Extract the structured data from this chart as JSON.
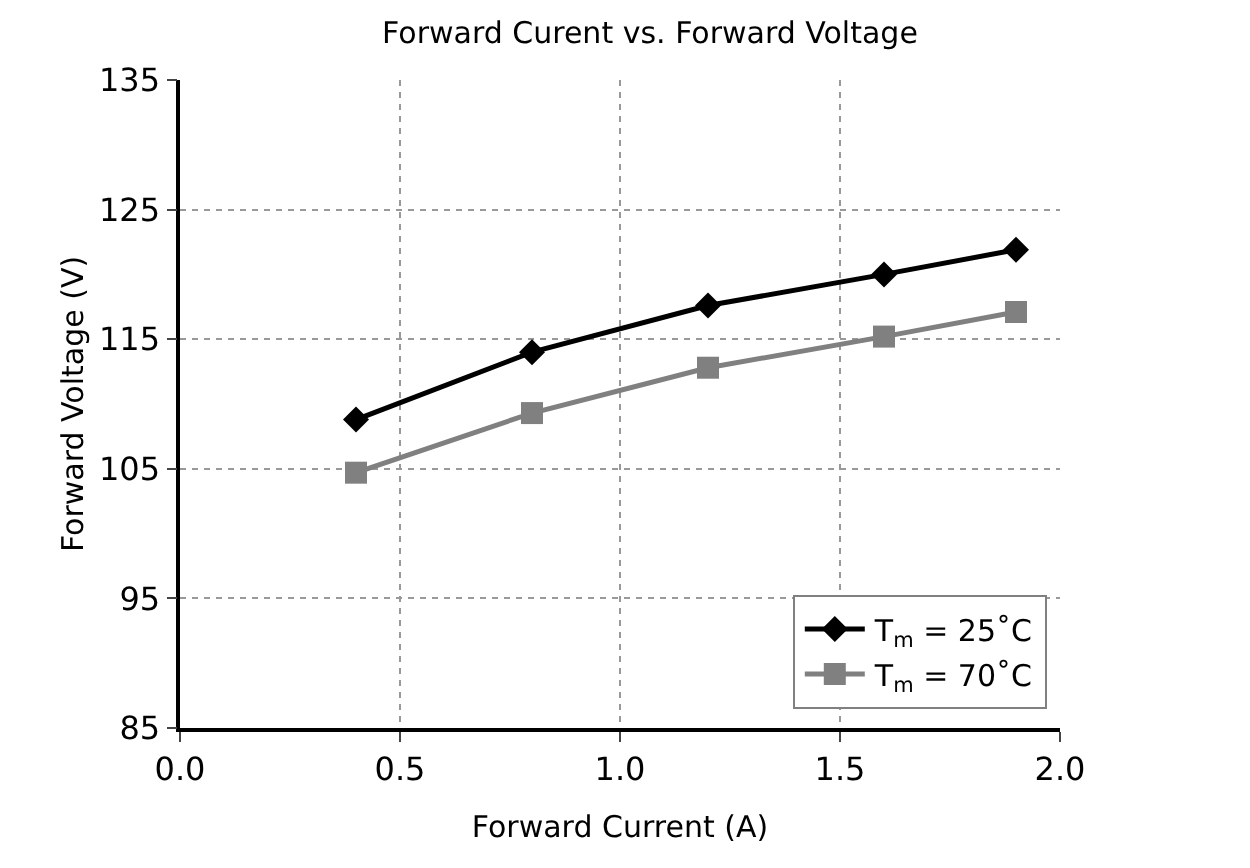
{
  "chart_data": {
    "type": "line",
    "title": "Forward Curent vs. Forward Voltage",
    "xlabel": "Forward Current (A)",
    "ylabel": "Forward Voltage (V)",
    "x": [
      0.4,
      0.8,
      1.2,
      1.6,
      1.9
    ],
    "series": [
      {
        "name": "T$_{m}$ = 25˚C",
        "color": "#000000",
        "marker": "diamond",
        "values": [
          108.8,
          114.0,
          117.6,
          120.0,
          121.9
        ]
      },
      {
        "name": "T$_{m}$ = 70˚C",
        "color": "#808080",
        "marker": "square",
        "values": [
          104.7,
          109.3,
          112.8,
          115.2,
          117.1
        ]
      }
    ],
    "xlim": [
      0.0,
      2.0
    ],
    "xticks": [
      {
        "value": 0,
        "label": "0.0"
      },
      0.5,
      {
        "value": 1,
        "label": "1.0"
      },
      1.5,
      {
        "value": 2,
        "label": "2.0"
      }
    ],
    "ylim": [
      85,
      135
    ],
    "yticks": [
      85,
      95,
      105,
      115,
      125,
      135
    ],
    "grid": true,
    "legend": "bottom right",
    "line_style": "solid"
  }
}
